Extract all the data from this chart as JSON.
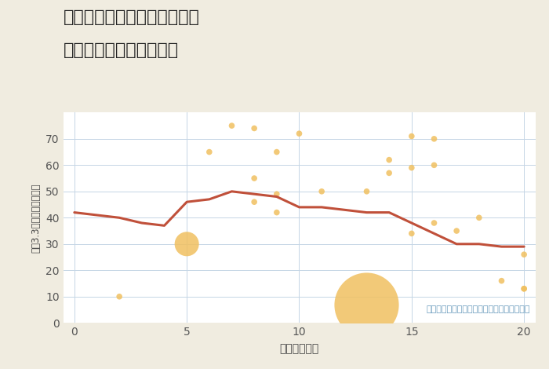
{
  "title_line1": "兵庫県たつの市龍野町島田の",
  "title_line2": "駅距離別中古戸建て価格",
  "xlabel": "駅距離（分）",
  "ylabel": "坪（3.3㎡）単価（万円）",
  "annotation": "円の大きさは、取引のあった物件面積を示す",
  "background_color": "#f0ece0",
  "title_bg_color": "#f0ece0",
  "plot_bg_color": "#ffffff",
  "scatter_color": "#f0c060",
  "scatter_edge_color": "none",
  "scatter_alpha": 0.85,
  "line_color": "#c0503a",
  "line_width": 2.2,
  "annotation_color": "#6699bb",
  "xlim": [
    -0.5,
    20.5
  ],
  "ylim": [
    0,
    80
  ],
  "xticks": [
    0,
    5,
    10,
    15,
    20
  ],
  "yticks": [
    0,
    10,
    20,
    30,
    40,
    50,
    60,
    70
  ],
  "scatter_x": [
    2,
    6,
    7,
    8,
    8,
    8,
    5,
    9,
    9,
    9,
    10,
    11,
    13,
    14,
    14,
    15,
    15,
    15,
    16,
    16,
    16,
    17,
    18,
    19,
    20,
    20,
    20
  ],
  "scatter_y": [
    10,
    65,
    75,
    74,
    55,
    46,
    30,
    65,
    49,
    42,
    72,
    50,
    50,
    62,
    57,
    71,
    59,
    34,
    70,
    60,
    38,
    35,
    40,
    16,
    26,
    13,
    13
  ],
  "scatter_size": [
    30,
    30,
    30,
    30,
    30,
    30,
    500,
    30,
    30,
    30,
    30,
    30,
    30,
    30,
    30,
    30,
    30,
    30,
    30,
    30,
    30,
    30,
    30,
    30,
    30,
    30,
    30
  ],
  "big_bubble_x": 13,
  "big_bubble_y": 7,
  "big_bubble_size": 3500,
  "line_x": [
    0,
    1,
    2,
    3,
    4,
    5,
    6,
    7,
    8,
    9,
    10,
    11,
    12,
    13,
    14,
    15,
    16,
    17,
    18,
    19,
    20
  ],
  "line_y": [
    42,
    41,
    40,
    38,
    37,
    46,
    47,
    50,
    49,
    48,
    44,
    44,
    43,
    42,
    42,
    38,
    34,
    30,
    30,
    29,
    29
  ],
  "title_fontsize": 16,
  "label_fontsize": 10,
  "tick_fontsize": 10,
  "annot_fontsize": 8
}
